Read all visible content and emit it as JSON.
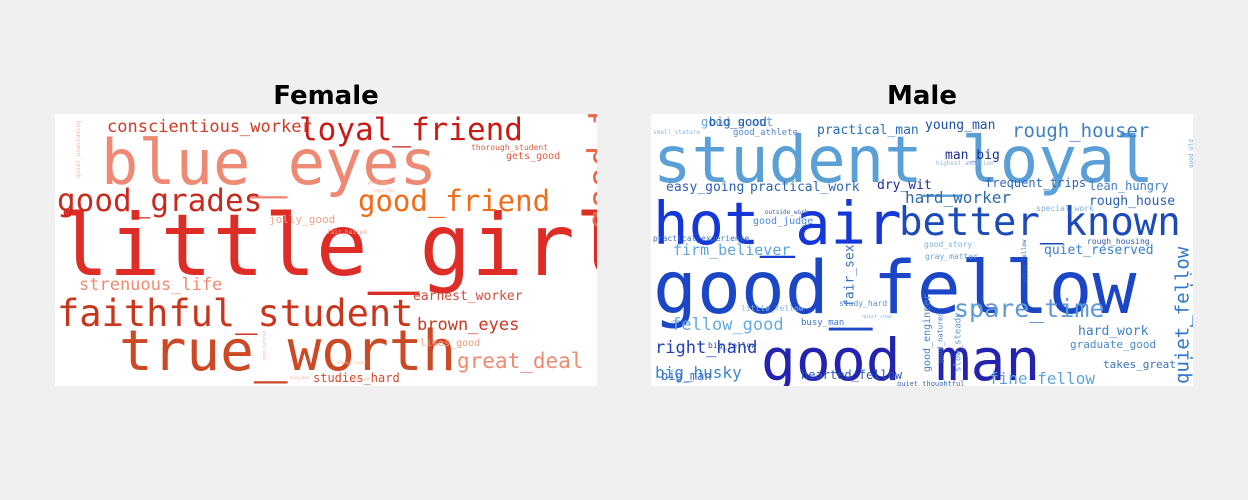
{
  "figure": {
    "panels": [
      {
        "title": "Female",
        "words": [
          {
            "text": "little_girl",
            "color": "#de2d26"
          },
          {
            "text": "blue_eyes",
            "color": "#ee8a74"
          },
          {
            "text": "true_worth",
            "color": "#cb4a25"
          },
          {
            "text": "faithful_student",
            "color": "#c9361e"
          },
          {
            "text": "good_time",
            "color": "#e56b4d"
          },
          {
            "text": "good_grades",
            "color": "#c92a1f"
          },
          {
            "text": "good_friend",
            "color": "#ef6c1c"
          },
          {
            "text": "loyal_friend",
            "color": "#c91b16"
          },
          {
            "text": "conscientious_worker",
            "color": "#cf3a26"
          },
          {
            "text": "great_deal",
            "color": "#ed8c6e"
          },
          {
            "text": "brown_eyes",
            "color": "#c9381e"
          },
          {
            "text": "strenuous_life",
            "color": "#f08a70"
          },
          {
            "text": "earnest_worker",
            "color": "#d34a3a"
          },
          {
            "text": "studies_hard",
            "color": "#d7452d"
          },
          {
            "text": "jolly_good",
            "color": "#f2a288"
          },
          {
            "text": "gets_good",
            "color": "#e4583e"
          },
          {
            "text": "likes_good",
            "color": "#f09a7e"
          },
          {
            "text": "thorough_student",
            "color": "#d5623f"
          },
          {
            "text": "fair_haired",
            "color": "#f3a891"
          },
          {
            "text": "quiet_unassuming",
            "color": "#f5b7a5"
          },
          {
            "text": "good_sport",
            "color": "#f5b09a"
          },
          {
            "text": "good_worker",
            "color": "#f5b09a"
          },
          {
            "text": "loves_fun",
            "color": "#f5b09a"
          },
          {
            "text": "busy_bee",
            "color": "#f5b09a"
          },
          {
            "text": "always_ready",
            "color": "#f5b09a"
          },
          {
            "text": "good_natured",
            "color": "#f5b09a"
          }
        ]
      },
      {
        "title": "Male",
        "words": [
          {
            "text": "student_loyal",
            "color": "#5a9fd6"
          },
          {
            "text": "good_fellow",
            "color": "#1b47c6"
          },
          {
            "text": "good_man",
            "color": "#2323b0"
          },
          {
            "text": "hot_air",
            "color": "#1537d6"
          },
          {
            "text": "better_known",
            "color": "#1c4bb8"
          },
          {
            "text": "spare_time",
            "color": "#5e9ad6"
          },
          {
            "text": "rough_houser",
            "color": "#3f7fc4"
          },
          {
            "text": "quiet_fellow",
            "color": "#2f76c9"
          },
          {
            "text": "hard_working",
            "color": "#2b6fb1"
          },
          {
            "text": "firm_believer",
            "color": "#5da6d8"
          },
          {
            "text": "fellow_good",
            "color": "#66aadf"
          },
          {
            "text": "hard_worker",
            "color": "#2c6aa8"
          },
          {
            "text": "right_hand",
            "color": "#1f3fb3"
          },
          {
            "text": "big_husky",
            "color": "#3a86cf"
          },
          {
            "text": "fine_fellow",
            "color": "#5ea3dc"
          },
          {
            "text": "practical_man",
            "color": "#2a6fb5"
          },
          {
            "text": "young_man",
            "color": "#1e4fa6"
          },
          {
            "text": "practical_work",
            "color": "#2b66b2"
          },
          {
            "text": "easy_going",
            "color": "#2d60b5"
          },
          {
            "text": "dry_wit",
            "color": "#1c2f99"
          },
          {
            "text": "good_scout",
            "color": "#5ea3dc"
          },
          {
            "text": "big_good",
            "color": "#2a5fb0"
          },
          {
            "text": "rough_house",
            "color": "#2a5fb0"
          },
          {
            "text": "lean_hungry",
            "color": "#3e80c2"
          },
          {
            "text": "frequent_trips",
            "color": "#2c65b5"
          },
          {
            "text": "man_big",
            "color": "#1c2f99"
          },
          {
            "text": "quiet_reserved",
            "color": "#3a7fc8"
          },
          {
            "text": "hard_work",
            "color": "#3d80c5"
          },
          {
            "text": "fair_sex",
            "color": "#3b6ec0"
          },
          {
            "text": "graduate_good",
            "color": "#4a8ad0"
          },
          {
            "text": "takes_great",
            "color": "#3a6fbc"
          },
          {
            "text": "hearted_fellow",
            "color": "#2d58b0"
          },
          {
            "text": "big_man",
            "color": "#3a6fc7"
          },
          {
            "text": "busy_man",
            "color": "#4277c6"
          },
          {
            "text": "good_athlete",
            "color": "#4f86cf"
          },
          {
            "text": "good_judge",
            "color": "#4a8bd8"
          },
          {
            "text": "practical_experience",
            "color": "#3c74c1"
          },
          {
            "text": "good_story",
            "color": "#7bb2e0"
          },
          {
            "text": "gray_matter",
            "color": "#6aa4d6"
          },
          {
            "text": "little_fellow",
            "color": "#8ab8e0"
          },
          {
            "text": "study_hard",
            "color": "#5a8fd0"
          },
          {
            "text": "big_fellow",
            "color": "#2e4fb0"
          },
          {
            "text": "good_engineer",
            "color": "#4a83c8"
          },
          {
            "text": "good_natured",
            "color": "#3e73be"
          },
          {
            "text": "slow_steady",
            "color": "#5d9bd5"
          },
          {
            "text": "special_work",
            "color": "#7aaed9"
          },
          {
            "text": "rough_housing",
            "color": "#2a58a6"
          },
          {
            "text": "jolly_fellow",
            "color": "#3565b0"
          },
          {
            "text": "outside_work",
            "color": "#3a5fb0"
          },
          {
            "text": "highest_ambition",
            "color": "#8bbbe3"
          },
          {
            "text": "small_stature",
            "color": "#8ab8e0"
          },
          {
            "text": "good_old",
            "color": "#7aa9d6"
          },
          {
            "text": "quiet_chap",
            "color": "#8bbbe3"
          },
          {
            "text": "quiet_thoughtful",
            "color": "#3a64b0"
          }
        ]
      }
    ]
  }
}
